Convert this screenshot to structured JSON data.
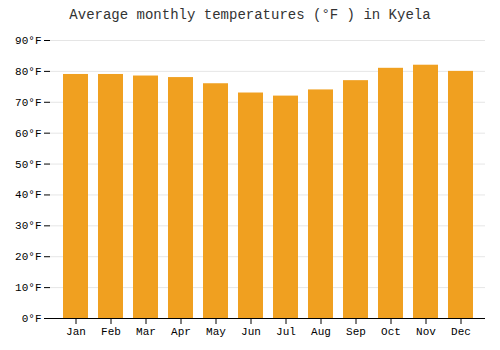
{
  "chart_data": {
    "type": "bar",
    "title": "Average monthly temperatures (°F ) in Kyela",
    "categories": [
      "Jan",
      "Feb",
      "Mar",
      "Apr",
      "May",
      "Jun",
      "Jul",
      "Aug",
      "Sep",
      "Oct",
      "Nov",
      "Dec"
    ],
    "values": [
      79,
      79,
      78.5,
      78,
      76,
      73,
      72,
      74,
      77,
      81,
      82,
      80
    ],
    "color": "#F0A020",
    "ylim": [
      0,
      90
    ],
    "yticks": [
      {
        "value": 0,
        "label": "0°F"
      },
      {
        "value": 10,
        "label": "10°F"
      },
      {
        "value": 20,
        "label": "20°F"
      },
      {
        "value": 30,
        "label": "30°F"
      },
      {
        "value": 40,
        "label": "40°F"
      },
      {
        "value": 50,
        "label": "50°F"
      },
      {
        "value": 60,
        "label": "60°F"
      },
      {
        "value": 70,
        "label": "70°F"
      },
      {
        "value": 80,
        "label": "80°F"
      },
      {
        "value": 90,
        "label": "90°F"
      }
    ],
    "grid": true
  }
}
